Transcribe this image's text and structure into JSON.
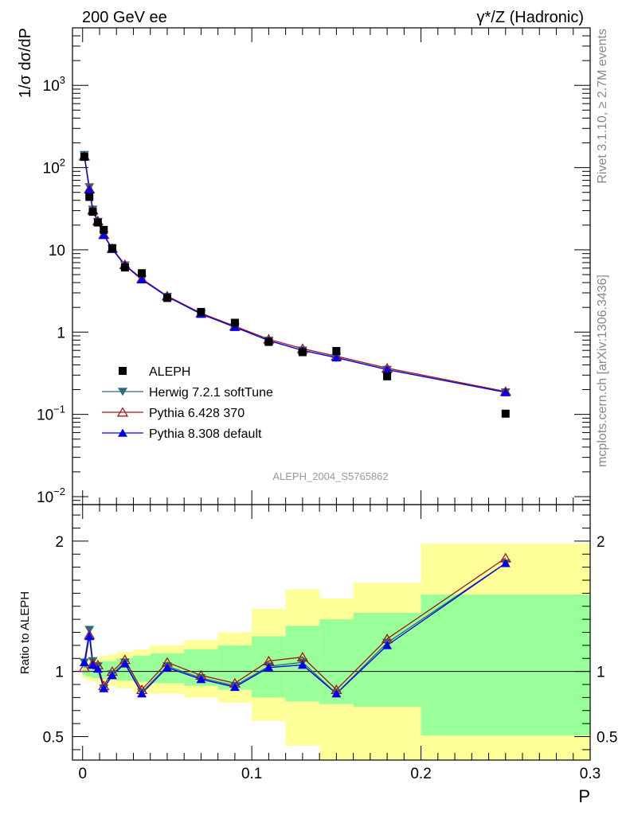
{
  "header": {
    "energy_label": "200 GeV ee",
    "process_label": "γ*/Z (Hadronic)"
  },
  "side_text": {
    "rivet_label": "Rivet 3.1.10, ≥ 2.7M events",
    "source_label": "mcplots.cern.ch [arXiv:1306.3436]"
  },
  "analysis_label": "ALEPH_2004_S5765862",
  "chart_data": [
    {
      "type": "scatter",
      "panel": "main",
      "ylabel": "1/σ  dσ/dP",
      "yscale": "log",
      "ylim": [
        0.008,
        5000
      ],
      "xlim": [
        -0.006,
        0.3
      ],
      "y_ticks": [
        {
          "v": 0.01,
          "m": "10",
          "e": "−2"
        },
        {
          "v": 0.1,
          "m": "10",
          "e": "−1"
        },
        {
          "v": 1,
          "m": "1",
          "e": ""
        },
        {
          "v": 10,
          "m": "10",
          "e": ""
        },
        {
          "v": 100,
          "m": "10",
          "e": "2"
        },
        {
          "v": 1000,
          "m": "10",
          "e": "3"
        }
      ],
      "x": [
        0.001,
        0.004,
        0.006,
        0.009,
        0.0125,
        0.0175,
        0.025,
        0.035,
        0.05,
        0.07,
        0.09,
        0.11,
        0.13,
        0.15,
        0.18,
        0.25
      ],
      "legend_position": "lower-left",
      "series": [
        {
          "name": "ALEPH",
          "marker": "square",
          "color": "#000000",
          "values": [
            135,
            44,
            29,
            21.5,
            17.5,
            10.5,
            6.1,
            5.2,
            2.6,
            1.76,
            1.3,
            0.76,
            0.57,
            0.59,
            0.29,
            0.102
          ]
        },
        {
          "name": "Herwig 7.2.1 softTune",
          "marker": "triangle-down",
          "color": "#2f6a7a",
          "values": [
            143,
            58,
            31,
            22,
            15.2,
            10.3,
            6.5,
            4.4,
            2.7,
            1.67,
            1.15,
            0.79,
            0.6,
            0.49,
            0.35,
            0.186
          ]
        },
        {
          "name": "Pythia 6.428 370",
          "marker": "triangle-open",
          "color": "#a31515",
          "values": [
            138,
            55,
            30.5,
            22.5,
            15.3,
            10.4,
            6.6,
            4.45,
            2.75,
            1.7,
            1.18,
            0.82,
            0.63,
            0.51,
            0.365,
            0.19
          ]
        },
        {
          "name": "Pythia 8.308 default",
          "marker": "triangle-up",
          "color": "#0000ee",
          "values": [
            140,
            54,
            30,
            22,
            15.1,
            10.2,
            6.5,
            4.35,
            2.7,
            1.66,
            1.15,
            0.79,
            0.6,
            0.49,
            0.35,
            0.185
          ]
        }
      ]
    },
    {
      "type": "line",
      "panel": "ratio",
      "ylabel": "Ratio to ALEPH",
      "xlabel": "P",
      "ylim": [
        0.32,
        2.28
      ],
      "xlim": [
        -0.006,
        0.3
      ],
      "y_ticks": [
        0.5,
        1,
        2
      ],
      "x_ticks": [
        0,
        0.1,
        0.2,
        0.3
      ],
      "x_tick_labels": [
        "0",
        "0.1",
        "0.2",
        "0.3"
      ],
      "reference_line": 1,
      "bins": [
        [
          0,
          0.002
        ],
        [
          0.002,
          0.005
        ],
        [
          0.005,
          0.008
        ],
        [
          0.008,
          0.01
        ],
        [
          0.01,
          0.015
        ],
        [
          0.015,
          0.02
        ],
        [
          0.02,
          0.03
        ],
        [
          0.03,
          0.04
        ],
        [
          0.04,
          0.06
        ],
        [
          0.06,
          0.08
        ],
        [
          0.08,
          0.1
        ],
        [
          0.1,
          0.12
        ],
        [
          0.12,
          0.14
        ],
        [
          0.14,
          0.16
        ],
        [
          0.16,
          0.2
        ],
        [
          0.2,
          0.3
        ]
      ],
      "band_stat": [
        [
          0.97,
          1.04
        ],
        [
          0.96,
          1.05
        ],
        [
          0.95,
          1.06
        ],
        [
          0.95,
          1.06
        ],
        [
          0.94,
          1.08
        ],
        [
          0.94,
          1.08
        ],
        [
          0.93,
          1.1
        ],
        [
          0.92,
          1.12
        ],
        [
          0.91,
          1.14
        ],
        [
          0.89,
          1.17
        ],
        [
          0.86,
          1.2
        ],
        [
          0.8,
          1.27
        ],
        [
          0.77,
          1.35
        ],
        [
          0.75,
          1.4
        ],
        [
          0.73,
          1.45
        ],
        [
          0.51,
          1.59
        ]
      ],
      "band_total": [
        [
          0.95,
          1.07
        ],
        [
          0.93,
          1.09
        ],
        [
          0.92,
          1.1
        ],
        [
          0.91,
          1.1
        ],
        [
          0.9,
          1.12
        ],
        [
          0.89,
          1.13
        ],
        [
          0.87,
          1.15
        ],
        [
          0.84,
          1.17
        ],
        [
          0.83,
          1.2
        ],
        [
          0.8,
          1.24
        ],
        [
          0.76,
          1.3
        ],
        [
          0.62,
          1.48
        ],
        [
          0.43,
          1.63
        ],
        [
          0.32,
          1.56
        ],
        [
          0.32,
          1.68
        ],
        [
          0.32,
          1.98
        ]
      ],
      "series": [
        {
          "name": "Herwig 7.2.1 softTune",
          "color": "#2f6a7a",
          "values": [
            1.07,
            1.32,
            1.08,
            1.04,
            0.87,
            0.98,
            1.07,
            0.84,
            1.04,
            0.95,
            0.89,
            1.04,
            1.07,
            0.83,
            1.22,
            1.83
          ]
        },
        {
          "name": "Pythia 6.428 370",
          "color": "#a31515",
          "values": [
            1.03,
            1.28,
            1.06,
            1.05,
            0.89,
            1.0,
            1.09,
            0.86,
            1.07,
            0.97,
            0.91,
            1.08,
            1.11,
            0.86,
            1.25,
            1.87
          ]
        },
        {
          "name": "Pythia 8.308 default",
          "color": "#0000ee",
          "values": [
            1.07,
            1.27,
            1.05,
            1.02,
            0.87,
            0.97,
            1.06,
            0.83,
            1.03,
            0.94,
            0.88,
            1.03,
            1.05,
            0.83,
            1.2,
            1.83
          ]
        }
      ]
    }
  ]
}
